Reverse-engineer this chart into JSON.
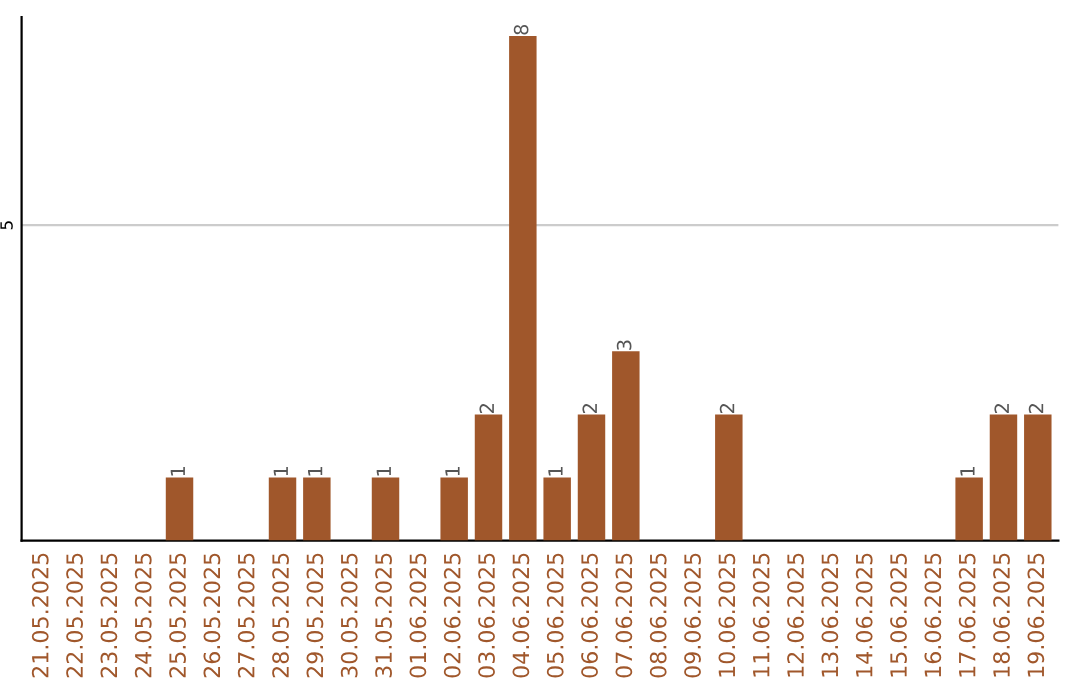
{
  "chart_data": {
    "type": "bar",
    "categories": [
      "21.05.2025",
      "22.05.2025",
      "23.05.2025",
      "24.05.2025",
      "25.05.2025",
      "26.05.2025",
      "27.05.2025",
      "28.05.2025",
      "29.05.2025",
      "30.05.2025",
      "31.05.2025",
      "01.06.2025",
      "02.06.2025",
      "03.06.2025",
      "04.06.2025",
      "05.06.2025",
      "06.06.2025",
      "07.06.2025",
      "08.06.2025",
      "09.06.2025",
      "10.06.2025",
      "11.06.2025",
      "12.06.2025",
      "13.06.2025",
      "14.06.2025",
      "15.06.2025",
      "16.06.2025",
      "17.06.2025",
      "18.06.2025",
      "19.06.2025"
    ],
    "values": [
      0,
      0,
      0,
      0,
      1,
      0,
      0,
      1,
      1,
      0,
      1,
      0,
      1,
      2,
      8,
      1,
      2,
      3,
      0,
      0,
      2,
      0,
      0,
      0,
      0,
      0,
      0,
      1,
      2,
      2
    ],
    "value_labels": [
      null,
      null,
      null,
      null,
      "1",
      null,
      null,
      "1",
      "1",
      null,
      "1",
      null,
      "1",
      "2",
      "8",
      "1",
      "2",
      "3",
      null,
      null,
      "2",
      null,
      null,
      null,
      null,
      null,
      null,
      "1",
      "2",
      "2"
    ],
    "color": "#a0572b",
    "ylim": [
      0,
      8.3
    ],
    "yticks": [
      5
    ],
    "grid": "y"
  }
}
